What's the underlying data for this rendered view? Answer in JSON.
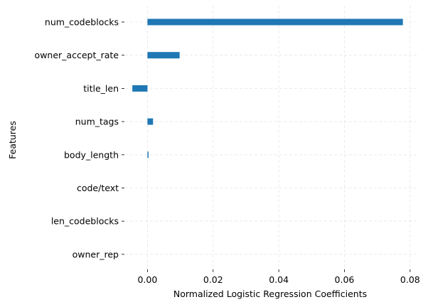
{
  "chart_data": {
    "type": "bar",
    "orientation": "horizontal",
    "xlabel": "Normalized Logistic Regression Coefficients",
    "ylabel": "Features",
    "xlim": [
      -0.0068,
      0.0822
    ],
    "x_ticks": [
      0.0,
      0.02,
      0.04,
      0.06,
      0.08
    ],
    "x_tick_labels": [
      "0.00",
      "0.02",
      "0.04",
      "0.06",
      "0.08"
    ],
    "grid": true,
    "grid_style": "dashed",
    "bar_color": "#1f77b4",
    "categories": [
      "num_codeblocks",
      "owner_accept_rate",
      "title_len",
      "num_tags",
      "body_length",
      "code/text",
      "len_codeblocks",
      "owner_rep"
    ],
    "values": [
      0.0778,
      0.0098,
      -0.0046,
      0.0017,
      0.0003,
      0.0,
      0.0,
      0.0
    ]
  }
}
